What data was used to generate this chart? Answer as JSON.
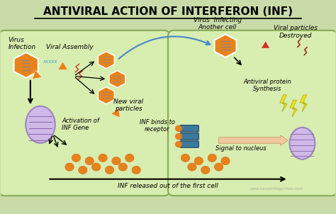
{
  "title": "ANTIVIRAL ACTION OF INTERFERON (INF)",
  "title_fontsize": 11,
  "title_color": "#000000",
  "bg_color": "#c8dba8",
  "cell_facecolor": "#d8edb0",
  "cell_edgecolor": "#88aa55",
  "orange_hex": "#E8821A",
  "orange_dark": "#D4701A",
  "blue_arrow": "#4488CC",
  "yellow_color": "#F0E020",
  "purple_color": "#D0B8E8",
  "purple_edge": "#9988BB",
  "purple_stripe": "#8866AA",
  "teal_color": "#3B7A9E",
  "red_frag": "#CC3322",
  "labels": {
    "virus_infection": "Virus\nInfection",
    "viral_assembly": "Viral Assembly",
    "new_viral": "New viral\nparticles",
    "activation_inf": "Activation of\nINF Gene",
    "inf_binds": "INF binds to\nreceptor",
    "inf_released": "INF released out of the first cell",
    "virus_infecting": "Virus  Infecting\nAnother cell",
    "viral_destroyed": "Viral particles\nDestroyed",
    "antiviral_protein": "Antiviral protein\nSynthesis",
    "signal_nucleus": "Signal to nucleus"
  },
  "watermark": "www.easybiologyclass.com"
}
